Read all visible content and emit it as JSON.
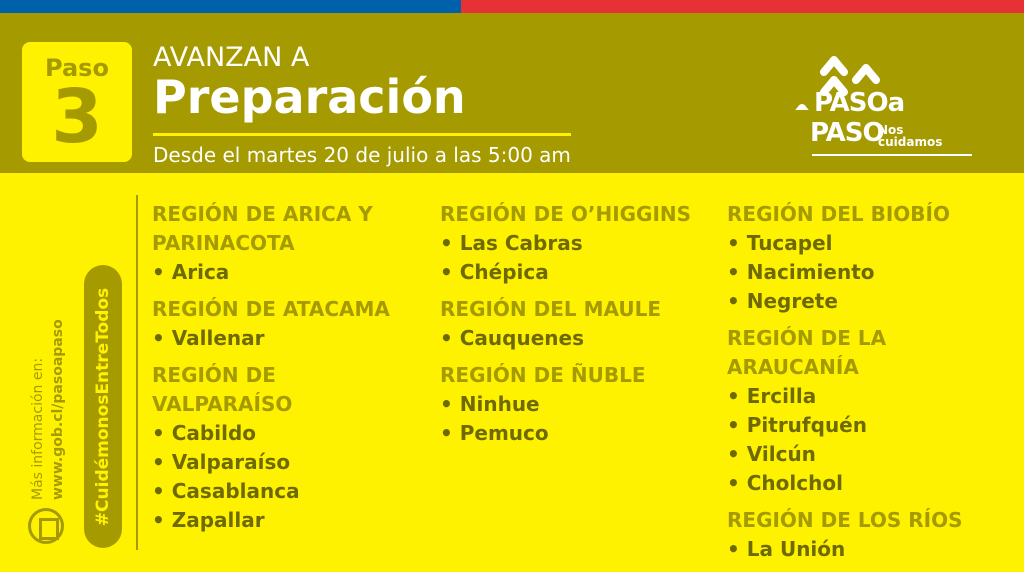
{
  "colors": {
    "blue": "#0061ab",
    "red": "#e63234",
    "olive": "#a59a00",
    "yellow": "#fff200"
  },
  "badge": {
    "label": "Paso",
    "number": "3"
  },
  "header": {
    "pre": "AVANZAN A",
    "title": "Preparación",
    "subtitle": "Desde el martes 20 de julio a las 5:00 am"
  },
  "logo": {
    "line1": "PASOa",
    "line2": "PASO",
    "tag": "Nos cuidamos"
  },
  "side": {
    "hashtag": "#CuidémonosEntreTodos",
    "info": "Más información en:",
    "url": "www.gob.cl/pasoapaso",
    "icon": "computer-icon"
  },
  "columns": [
    [
      {
        "region": "REGIÓN DE ARICA Y PARINACOTA",
        "items": [
          "• Arica"
        ]
      },
      {
        "region": "REGIÓN DE ATACAMA",
        "items": [
          "• Vallenar"
        ]
      },
      {
        "region": "REGIÓN DE VALPARAÍSO",
        "items": [
          "• Cabildo",
          "• Valparaíso",
          "• Casablanca",
          "• Zapallar"
        ]
      }
    ],
    [
      {
        "region": "REGIÓN DE O’HIGGINS",
        "items": [
          "• Las Cabras",
          "• Chépica"
        ]
      },
      {
        "region": "REGIÓN DEL MAULE",
        "items": [
          "• Cauquenes"
        ]
      },
      {
        "region": "REGIÓN DE ÑUBLE",
        "items": [
          "• Ninhue",
          "• Pemuco"
        ]
      }
    ],
    [
      {
        "region": "REGIÓN DEL BIOBÍO",
        "items": [
          "• Tucapel",
          "• Nacimiento",
          "• Negrete"
        ]
      },
      {
        "region": "REGIÓN DE LA ARAUCANÍA",
        "items": [
          "•  Ercilla",
          "•  Pitrufquén",
          "•  Vilcún",
          "•  Cholchol"
        ]
      },
      {
        "region": "REGIÓN DE LOS RÍOS",
        "items": [
          "• La Unión"
        ]
      }
    ]
  ]
}
